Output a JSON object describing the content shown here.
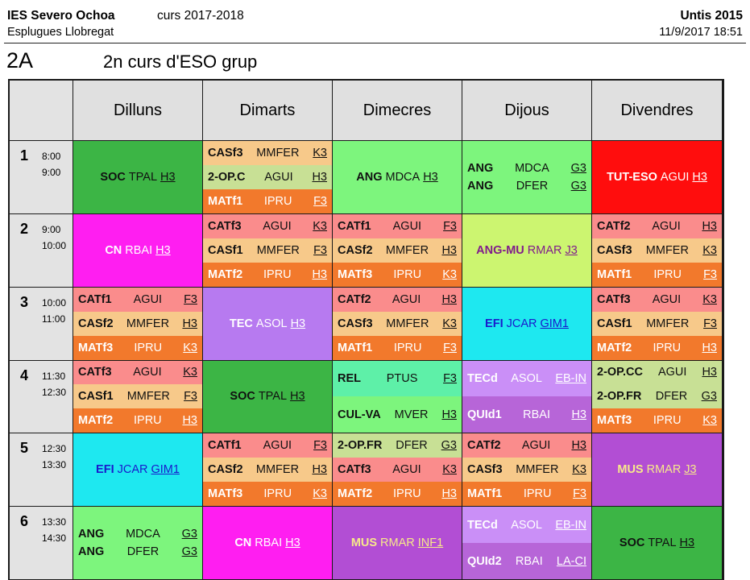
{
  "header": {
    "school": "IES Severo Ochoa",
    "town": "Esplugues Llobregat",
    "year": "curs 2017-2018",
    "app": "Untis 2015",
    "datetime": "11/9/2017  18:51",
    "class_code": "2A",
    "class_desc": "2n curs d'ESO grup"
  },
  "days": [
    "Dilluns",
    "Dimarts",
    "Dimecres",
    "Dijous",
    "Divendres"
  ],
  "colors": {
    "soc": "#3cb545",
    "cas": "#f7c98a",
    "op": "#c8e095",
    "mat": "#f2792c",
    "cat": "#fa8c8c",
    "ang": "#7df57d",
    "eng2": "#ccf570",
    "tut": "#ff0d0d",
    "cn": "#ff1ef1",
    "tec": "#b77af0",
    "efi": "#1ee8f0",
    "rel": "#5ef0a8",
    "cul": "#7df57d",
    "tecd": "#ca8ff7",
    "quid": "#b765d8",
    "mus": "#b24ed4",
    "white": "#ffffff",
    "black": "#111111",
    "purple_text": "#801c8c",
    "yellow_text": "#f7e98a",
    "blue_text": "#1a1acc"
  },
  "periods": [
    {
      "num": "1",
      "start": "8:00",
      "end": "9:00",
      "cells": [
        {
          "bg": "#3cb545",
          "lines": [
            {
              "s": "SOC",
              "t": "TPAL",
              "r": "H3",
              "c": "#111111",
              "bg": "#3cb545"
            }
          ]
        },
        {
          "lines": [
            {
              "s": "CASf3",
              "t": "MMFER",
              "r": "K3",
              "c": "#111111",
              "bg": "#f7c98a"
            },
            {
              "s": "2-OP.C",
              "t": "AGUI",
              "r": "H3",
              "c": "#111111",
              "bg": "#c8e095"
            },
            {
              "s": "MATf1",
              "t": "IPRU",
              "r": "F3",
              "c": "#ffffff",
              "bg": "#f2792c"
            }
          ]
        },
        {
          "bg": "#7df57d",
          "lines": [
            {
              "s": "ANG",
              "t": "MDCA",
              "r": "H3",
              "c": "#111111",
              "bg": "#7df57d"
            }
          ]
        },
        {
          "bg": "#7df57d",
          "gap": true,
          "lines": [
            {
              "s": "ANG",
              "t": "MDCA",
              "r": "G3",
              "c": "#111111",
              "bg": "#7df57d"
            },
            {
              "s": "ANG",
              "t": "DFER",
              "r": "G3",
              "c": "#111111",
              "bg": "#7df57d"
            }
          ]
        },
        {
          "bg": "#ff0d0d",
          "lines": [
            {
              "s": "TUT-ESO",
              "t": "AGUI",
              "r": "H3",
              "c": "#ffffff",
              "bg": "#ff0d0d"
            }
          ]
        }
      ]
    },
    {
      "num": "2",
      "start": "9:00",
      "end": "10:00",
      "cells": [
        {
          "bg": "#ff1ef1",
          "lines": [
            {
              "s": "CN",
              "t": "RBAI",
              "r": "H3",
              "c": "#ffffff",
              "bg": "#ff1ef1"
            }
          ]
        },
        {
          "lines": [
            {
              "s": "CATf3",
              "t": "AGUI",
              "r": "K3",
              "c": "#111111",
              "bg": "#fa8c8c"
            },
            {
              "s": "CASf1",
              "t": "MMFER",
              "r": "F3",
              "c": "#111111",
              "bg": "#f7c98a"
            },
            {
              "s": "MATf2",
              "t": "IPRU",
              "r": "H3",
              "c": "#ffffff",
              "bg": "#f2792c"
            }
          ]
        },
        {
          "lines": [
            {
              "s": "CATf1",
              "t": "AGUI",
              "r": "F3",
              "c": "#111111",
              "bg": "#fa8c8c"
            },
            {
              "s": "CASf2",
              "t": "MMFER",
              "r": "H3",
              "c": "#111111",
              "bg": "#f7c98a"
            },
            {
              "s": "MATf3",
              "t": "IPRU",
              "r": "K3",
              "c": "#ffffff",
              "bg": "#f2792c"
            }
          ]
        },
        {
          "bg": "#ccf570",
          "lines": [
            {
              "s": "ANG-MU",
              "t": "RMAR",
              "r": "J3",
              "c": "#801c8c",
              "bg": "#ccf570"
            }
          ]
        },
        {
          "lines": [
            {
              "s": "CATf2",
              "t": "AGUI",
              "r": "H3",
              "c": "#111111",
              "bg": "#fa8c8c"
            },
            {
              "s": "CASf3",
              "t": "MMFER",
              "r": "K3",
              "c": "#111111",
              "bg": "#f7c98a"
            },
            {
              "s": "MATf1",
              "t": "IPRU",
              "r": "F3",
              "c": "#ffffff",
              "bg": "#f2792c"
            }
          ]
        }
      ]
    },
    {
      "num": "3",
      "start": "10:00",
      "end": "11:00",
      "cells": [
        {
          "lines": [
            {
              "s": "CATf1",
              "t": "AGUI",
              "r": "F3",
              "c": "#111111",
              "bg": "#fa8c8c"
            },
            {
              "s": "CASf2",
              "t": "MMFER",
              "r": "H3",
              "c": "#111111",
              "bg": "#f7c98a"
            },
            {
              "s": "MATf3",
              "t": "IPRU",
              "r": "K3",
              "c": "#ffffff",
              "bg": "#f2792c"
            }
          ]
        },
        {
          "bg": "#b77af0",
          "lines": [
            {
              "s": "TEC",
              "t": "ASOL",
              "r": "H3",
              "c": "#ffffff",
              "bg": "#b77af0"
            }
          ]
        },
        {
          "lines": [
            {
              "s": "CATf2",
              "t": "AGUI",
              "r": "H3",
              "c": "#111111",
              "bg": "#fa8c8c"
            },
            {
              "s": "CASf3",
              "t": "MMFER",
              "r": "K3",
              "c": "#111111",
              "bg": "#f7c98a"
            },
            {
              "s": "MATf1",
              "t": "IPRU",
              "r": "F3",
              "c": "#ffffff",
              "bg": "#f2792c"
            }
          ]
        },
        {
          "bg": "#1ee8f0",
          "lines": [
            {
              "s": "EFI",
              "t": "JCAR",
              "r": "GIM1",
              "c": "#1a1acc",
              "bg": "#1ee8f0"
            }
          ]
        },
        {
          "lines": [
            {
              "s": "CATf3",
              "t": "AGUI",
              "r": "K3",
              "c": "#111111",
              "bg": "#fa8c8c"
            },
            {
              "s": "CASf1",
              "t": "MMFER",
              "r": "F3",
              "c": "#111111",
              "bg": "#f7c98a"
            },
            {
              "s": "MATf2",
              "t": "IPRU",
              "r": "H3",
              "c": "#ffffff",
              "bg": "#f2792c"
            }
          ]
        }
      ]
    },
    {
      "num": "4",
      "start": "11:30",
      "end": "12:30",
      "cells": [
        {
          "lines": [
            {
              "s": "CATf3",
              "t": "AGUI",
              "r": "K3",
              "c": "#111111",
              "bg": "#fa8c8c"
            },
            {
              "s": "CASf1",
              "t": "MMFER",
              "r": "F3",
              "c": "#111111",
              "bg": "#f7c98a"
            },
            {
              "s": "MATf2",
              "t": "IPRU",
              "r": "H3",
              "c": "#ffffff",
              "bg": "#f2792c"
            }
          ]
        },
        {
          "bg": "#3cb545",
          "lines": [
            {
              "s": "SOC",
              "t": "TPAL",
              "r": "H3",
              "c": "#111111",
              "bg": "#3cb545"
            }
          ]
        },
        {
          "lines": [
            {
              "s": "REL",
              "t": "PTUS",
              "r": "F3",
              "c": "#111111",
              "bg": "#5ef0a8"
            },
            {
              "s": "CUL-VA",
              "t": "MVER",
              "r": "H3",
              "c": "#111111",
              "bg": "#7df57d"
            }
          ]
        },
        {
          "lines": [
            {
              "s": "TECd",
              "t": "ASOL",
              "r": "EB-IN",
              "c": "#ffffff",
              "bg": "#ca8ff7"
            },
            {
              "s": "QUId1",
              "t": "RBAI",
              "r": "H3",
              "c": "#ffffff",
              "bg": "#b765d8"
            }
          ]
        },
        {
          "lines": [
            {
              "s": "2-OP.CC",
              "t": "AGUI",
              "r": "H3",
              "c": "#111111",
              "bg": "#c8e095"
            },
            {
              "s": "2-OP.FR",
              "t": "DFER",
              "r": "G3",
              "c": "#111111",
              "bg": "#c8e095"
            },
            {
              "s": "MATf3",
              "t": "IPRU",
              "r": "K3",
              "c": "#ffffff",
              "bg": "#f2792c"
            }
          ]
        }
      ]
    },
    {
      "num": "5",
      "start": "12:30",
      "end": "13:30",
      "cells": [
        {
          "bg": "#1ee8f0",
          "lines": [
            {
              "s": "EFI",
              "t": "JCAR",
              "r": "GIM1",
              "c": "#1a1acc",
              "bg": "#1ee8f0"
            }
          ]
        },
        {
          "lines": [
            {
              "s": "CATf1",
              "t": "AGUI",
              "r": "F3",
              "c": "#111111",
              "bg": "#fa8c8c"
            },
            {
              "s": "CASf2",
              "t": "MMFER",
              "r": "H3",
              "c": "#111111",
              "bg": "#f7c98a"
            },
            {
              "s": "MATf3",
              "t": "IPRU",
              "r": "K3",
              "c": "#ffffff",
              "bg": "#f2792c"
            }
          ]
        },
        {
          "lines": [
            {
              "s": "2-OP.FR",
              "t": "DFER",
              "r": "G3",
              "c": "#111111",
              "bg": "#c8e095"
            },
            {
              "s": "CATf3",
              "t": "AGUI",
              "r": "K3",
              "c": "#111111",
              "bg": "#fa8c8c"
            },
            {
              "s": "MATf2",
              "t": "IPRU",
              "r": "H3",
              "c": "#ffffff",
              "bg": "#f2792c"
            }
          ]
        },
        {
          "lines": [
            {
              "s": "CATf2",
              "t": "AGUI",
              "r": "H3",
              "c": "#111111",
              "bg": "#fa8c8c"
            },
            {
              "s": "CASf3",
              "t": "MMFER",
              "r": "K3",
              "c": "#111111",
              "bg": "#f7c98a"
            },
            {
              "s": "MATf1",
              "t": "IPRU",
              "r": "F3",
              "c": "#ffffff",
              "bg": "#f2792c"
            }
          ]
        },
        {
          "bg": "#b24ed4",
          "lines": [
            {
              "s": "MUS",
              "t": "RMAR",
              "r": "J3",
              "c": "#f7e98a",
              "bg": "#b24ed4"
            }
          ]
        }
      ]
    },
    {
      "num": "6",
      "start": "13:30",
      "end": "14:30",
      "cells": [
        {
          "bg": "#7df57d",
          "gap": true,
          "lines": [
            {
              "s": "ANG",
              "t": "MDCA",
              "r": "G3",
              "c": "#111111",
              "bg": "#7df57d"
            },
            {
              "s": "ANG",
              "t": "DFER",
              "r": "G3",
              "c": "#111111",
              "bg": "#7df57d"
            }
          ]
        },
        {
          "bg": "#ff1ef1",
          "lines": [
            {
              "s": "CN",
              "t": "RBAI",
              "r": "H3",
              "c": "#ffffff",
              "bg": "#ff1ef1"
            }
          ]
        },
        {
          "bg": "#b24ed4",
          "lines": [
            {
              "s": "MUS",
              "t": "RMAR",
              "r": "INF1",
              "c": "#f7e98a",
              "bg": "#b24ed4"
            }
          ]
        },
        {
          "lines": [
            {
              "s": "TECd",
              "t": "ASOL",
              "r": "EB-IN",
              "c": "#ffffff",
              "bg": "#ca8ff7"
            },
            {
              "s": "QUId2",
              "t": "RBAI",
              "r": "LA-CI",
              "c": "#ffffff",
              "bg": "#b765d8"
            }
          ]
        },
        {
          "bg": "#3cb545",
          "lines": [
            {
              "s": "SOC",
              "t": "TPAL",
              "r": "H3",
              "c": "#111111",
              "bg": "#3cb545"
            }
          ]
        }
      ]
    }
  ]
}
